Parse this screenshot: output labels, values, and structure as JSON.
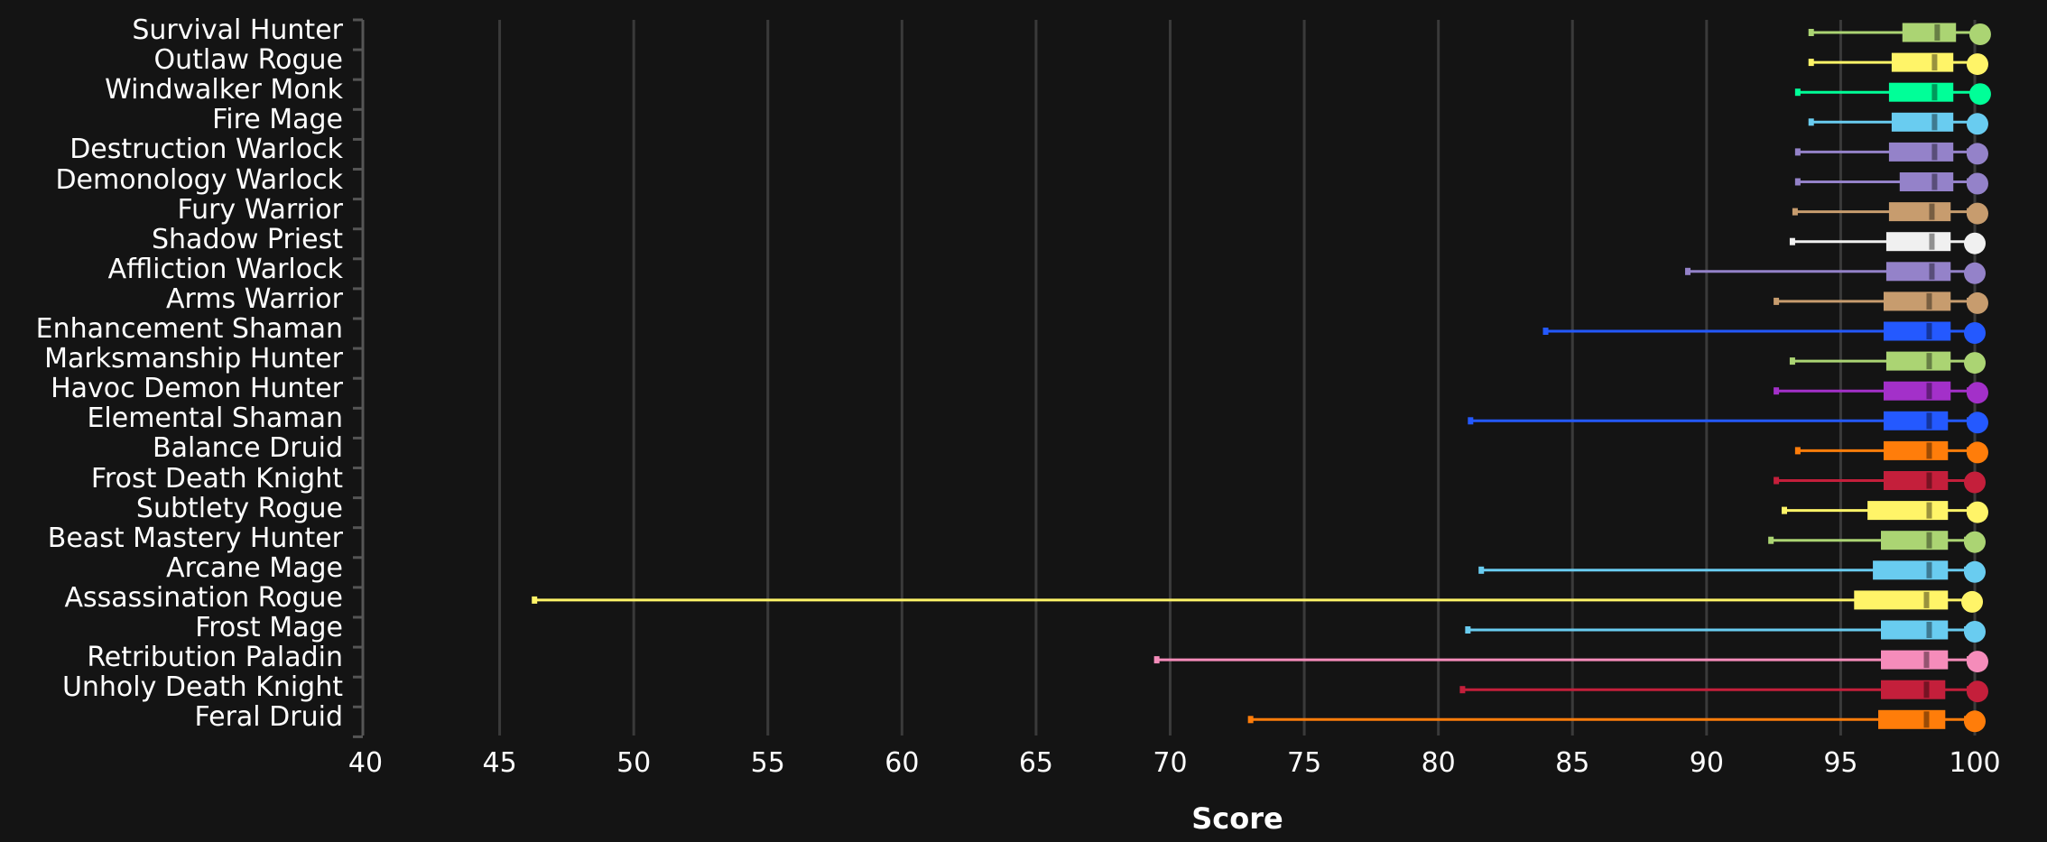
{
  "chart_data": {
    "type": "box",
    "title": "",
    "xlabel": "Score",
    "ylabel": "",
    "xlim": [
      40,
      100
    ],
    "xticks": [
      40,
      45,
      50,
      55,
      60,
      65,
      70,
      75,
      80,
      85,
      90,
      95,
      100
    ],
    "grid": true,
    "orientation": "horizontal",
    "series": [
      {
        "name": "Survival Hunter",
        "color": "#abd473",
        "min": 93.9,
        "q1": 97.3,
        "median": 98.6,
        "q3": 99.3,
        "max": 100,
        "point": 100.2
      },
      {
        "name": "Outlaw Rogue",
        "color": "#fff468",
        "min": 93.9,
        "q1": 96.9,
        "median": 98.5,
        "q3": 99.2,
        "max": 99.9,
        "point": 100.1
      },
      {
        "name": "Windwalker Monk",
        "color": "#00ff98",
        "min": 93.4,
        "q1": 96.8,
        "median": 98.5,
        "q3": 99.2,
        "max": 100,
        "point": 100.2
      },
      {
        "name": "Fire Mage",
        "color": "#69ccf0",
        "min": 93.9,
        "q1": 96.9,
        "median": 98.5,
        "q3": 99.2,
        "max": 100,
        "point": 100.1
      },
      {
        "name": "Destruction Warlock",
        "color": "#9482c9",
        "min": 93.4,
        "q1": 96.8,
        "median": 98.5,
        "q3": 99.2,
        "max": 99.8,
        "point": 100.1
      },
      {
        "name": "Demonology Warlock",
        "color": "#9482c9",
        "min": 93.4,
        "q1": 97.2,
        "median": 98.5,
        "q3": 99.2,
        "max": 99.8,
        "point": 100.1
      },
      {
        "name": "Fury Warrior",
        "color": "#c79c6e",
        "min": 93.3,
        "q1": 96.8,
        "median": 98.4,
        "q3": 99.1,
        "max": 99.8,
        "point": 100.1
      },
      {
        "name": "Shadow Priest",
        "color": "#f0f0f0",
        "min": 93.2,
        "q1": 96.7,
        "median": 98.4,
        "q3": 99.1,
        "max": 99.8,
        "point": 100.0
      },
      {
        "name": "Affliction Warlock",
        "color": "#9482c9",
        "min": 89.3,
        "q1": 96.7,
        "median": 98.4,
        "q3": 99.1,
        "max": 99.8,
        "point": 100.0
      },
      {
        "name": "Arms Warrior",
        "color": "#c79c6e",
        "min": 92.6,
        "q1": 96.6,
        "median": 98.3,
        "q3": 99.1,
        "max": 99.8,
        "point": 100.1
      },
      {
        "name": "Enhancement Shaman",
        "color": "#2459ff",
        "min": 84.0,
        "q1": 96.6,
        "median": 98.3,
        "q3": 99.1,
        "max": 99.8,
        "point": 100.0
      },
      {
        "name": "Marksmanship Hunter",
        "color": "#abd473",
        "min": 93.2,
        "q1": 96.7,
        "median": 98.3,
        "q3": 99.1,
        "max": 99.8,
        "point": 100.0
      },
      {
        "name": "Havoc Demon Hunter",
        "color": "#a330c9",
        "min": 92.6,
        "q1": 96.6,
        "median": 98.3,
        "q3": 99.1,
        "max": 99.8,
        "point": 100.1
      },
      {
        "name": "Elemental Shaman",
        "color": "#2459ff",
        "min": 81.2,
        "q1": 96.6,
        "median": 98.3,
        "q3": 99.0,
        "max": 99.8,
        "point": 100.1
      },
      {
        "name": "Balance Druid",
        "color": "#ff7d0a",
        "min": 93.4,
        "q1": 96.6,
        "median": 98.3,
        "q3": 99.0,
        "max": 99.8,
        "point": 100.1
      },
      {
        "name": "Frost Death Knight",
        "color": "#c41f3b",
        "min": 92.6,
        "q1": 96.6,
        "median": 98.3,
        "q3": 99.0,
        "max": 99.8,
        "point": 100.0
      },
      {
        "name": "Subtlety Rogue",
        "color": "#fff468",
        "min": 92.9,
        "q1": 96.0,
        "median": 98.3,
        "q3": 99.0,
        "max": 99.8,
        "point": 100.1
      },
      {
        "name": "Beast Mastery Hunter",
        "color": "#abd473",
        "min": 92.4,
        "q1": 96.5,
        "median": 98.3,
        "q3": 99.0,
        "max": 99.7,
        "point": 100.0
      },
      {
        "name": "Arcane Mage",
        "color": "#69ccf0",
        "min": 81.6,
        "q1": 96.2,
        "median": 98.3,
        "q3": 99.0,
        "max": 99.7,
        "point": 100.0
      },
      {
        "name": "Assassination Rogue",
        "color": "#fff468",
        "min": 46.3,
        "q1": 95.5,
        "median": 98.2,
        "q3": 99.0,
        "max": 99.7,
        "point": 99.9
      },
      {
        "name": "Frost Mage",
        "color": "#69ccf0",
        "min": 81.1,
        "q1": 96.5,
        "median": 98.3,
        "q3": 99.0,
        "max": 99.7,
        "point": 100.0
      },
      {
        "name": "Retribution Paladin",
        "color": "#f58cba",
        "min": 69.5,
        "q1": 96.5,
        "median": 98.2,
        "q3": 99.0,
        "max": 99.8,
        "point": 100.1
      },
      {
        "name": "Unholy Death Knight",
        "color": "#c41f3b",
        "min": 80.9,
        "q1": 96.5,
        "median": 98.2,
        "q3": 98.9,
        "max": 99.8,
        "point": 100.1
      },
      {
        "name": "Feral Druid",
        "color": "#ff7d0a",
        "min": 73.0,
        "q1": 96.4,
        "median": 98.2,
        "q3": 98.9,
        "max": 99.7,
        "point": 100.0
      }
    ]
  },
  "axis": {
    "x_title": "Score",
    "x_ticks": [
      "40",
      "45",
      "50",
      "55",
      "60",
      "65",
      "70",
      "75",
      "80",
      "85",
      "90",
      "95",
      "100"
    ]
  },
  "colors": {
    "background": "#141414",
    "grid": "#3a3a3a",
    "axis": "#555555",
    "text": "#ffffff"
  }
}
